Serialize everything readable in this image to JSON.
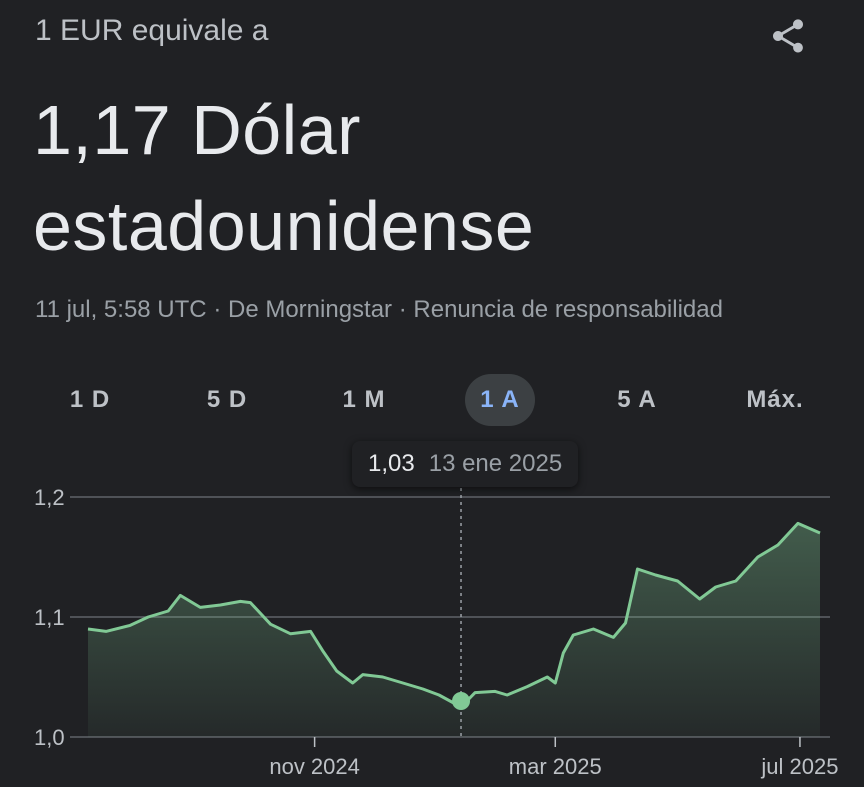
{
  "header": {
    "subtitle": "1 EUR equivale a"
  },
  "result": {
    "line1": "1,17 Dólar",
    "line2": "estadounidense"
  },
  "source": {
    "timestamp": "11 jul, 5:58 UTC",
    "sep1": "·",
    "provider": "De Morningstar",
    "sep2": "·",
    "disclaimer": "Renuncia de responsabilidad"
  },
  "tabs": [
    {
      "label": "1 D",
      "active": false
    },
    {
      "label": "5 D",
      "active": false
    },
    {
      "label": "1 M",
      "active": false
    },
    {
      "label": "1 A",
      "active": true
    },
    {
      "label": "5 A",
      "active": false
    },
    {
      "label": "Máx.",
      "active": false
    }
  ],
  "tooltip": {
    "value": "1,03",
    "date": "13 ene 2025"
  },
  "colors": {
    "background": "#202124",
    "line": "#81c995",
    "active_tab_text": "#8ab4f8",
    "grid": "#5f6368"
  },
  "icons": {
    "share": "share-icon"
  },
  "chart_data": {
    "type": "area",
    "y_ticks": [
      "1,2",
      "1,1",
      "1,0"
    ],
    "y_tick_values": [
      1.2,
      1.1,
      1.0
    ],
    "ylim": [
      1.0,
      1.2
    ],
    "x_ticks": [
      "nov 2024",
      "mar 2025",
      "jul 2025"
    ],
    "x_tick_dates": [
      "2024-11-01",
      "2025-03-01",
      "2025-07-01"
    ],
    "series": [
      {
        "x": [
          "2024-07-11",
          "2024-07-20",
          "2024-08-01",
          "2024-08-10",
          "2024-08-20",
          "2024-08-26",
          "2024-09-05",
          "2024-09-15",
          "2024-09-25",
          "2024-09-30",
          "2024-10-10",
          "2024-10-20",
          "2024-10-30",
          "2024-11-05",
          "2024-11-12",
          "2024-11-20",
          "2024-11-25",
          "2024-12-05",
          "2024-12-15",
          "2024-12-25",
          "2025-01-02",
          "2025-01-13",
          "2025-01-20",
          "2025-01-30",
          "2025-02-05",
          "2025-02-15",
          "2025-02-25",
          "2025-03-01",
          "2025-03-05",
          "2025-03-10",
          "2025-03-20",
          "2025-03-30",
          "2025-04-05",
          "2025-04-11",
          "2025-04-20",
          "2025-05-01",
          "2025-05-12",
          "2025-05-20",
          "2025-05-30",
          "2025-06-10",
          "2025-06-20",
          "2025-06-30",
          "2025-07-11"
        ],
        "y": [
          1.09,
          1.088,
          1.093,
          1.1,
          1.105,
          1.118,
          1.108,
          1.11,
          1.113,
          1.112,
          1.094,
          1.086,
          1.088,
          1.072,
          1.055,
          1.045,
          1.052,
          1.05,
          1.045,
          1.04,
          1.035,
          1.025,
          1.037,
          1.038,
          1.035,
          1.042,
          1.05,
          1.045,
          1.07,
          1.085,
          1.09,
          1.083,
          1.095,
          1.14,
          1.135,
          1.13,
          1.115,
          1.125,
          1.13,
          1.15,
          1.16,
          1.178,
          1.17
        ]
      }
    ],
    "highlight": {
      "x": "2025-01-13",
      "y": 1.03
    }
  }
}
